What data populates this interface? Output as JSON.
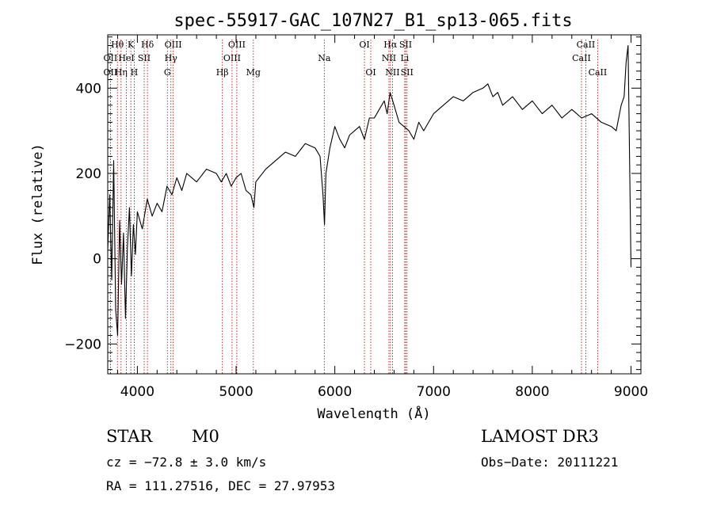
{
  "chart_data": {
    "type": "line",
    "title": "spec-55917-GAC_107N27_B1_sp13-065.fits",
    "xlabel": "Wavelength (Å)",
    "ylabel": "Flux (relative)",
    "xlim": [
      3700,
      9100
    ],
    "ylim": [
      -270,
      525
    ],
    "x_ticks": [
      4000,
      5000,
      6000,
      7000,
      8000,
      9000
    ],
    "y_ticks": [
      -200,
      0,
      200,
      400
    ],
    "series": [
      {
        "name": "spectrum",
        "x": [
          3700,
          3720,
          3740,
          3760,
          3780,
          3800,
          3820,
          3840,
          3860,
          3880,
          3900,
          3920,
          3940,
          3960,
          3980,
          4000,
          4050,
          4100,
          4150,
          4200,
          4250,
          4300,
          4350,
          4400,
          4450,
          4500,
          4600,
          4700,
          4800,
          4850,
          4900,
          4950,
          5000,
          5050,
          5100,
          5150,
          5180,
          5200,
          5300,
          5400,
          5500,
          5600,
          5700,
          5800,
          5850,
          5880,
          5895,
          5910,
          5950,
          6000,
          6050,
          6100,
          6150,
          6200,
          6250,
          6300,
          6350,
          6400,
          6450,
          6500,
          6530,
          6560,
          6600,
          6650,
          6700,
          6750,
          6800,
          6850,
          6900,
          7000,
          7100,
          7200,
          7300,
          7400,
          7500,
          7550,
          7600,
          7650,
          7700,
          7800,
          7900,
          8000,
          8100,
          8200,
          8300,
          8400,
          8500,
          8600,
          8700,
          8800,
          8850,
          8900,
          8930,
          8950,
          8970,
          9000
        ],
        "y": [
          20,
          150,
          -50,
          230,
          -120,
          -180,
          90,
          -60,
          60,
          -140,
          30,
          120,
          -40,
          80,
          10,
          110,
          70,
          140,
          100,
          130,
          110,
          170,
          150,
          190,
          160,
          200,
          180,
          210,
          200,
          180,
          200,
          170,
          190,
          200,
          160,
          150,
          120,
          180,
          210,
          230,
          250,
          240,
          270,
          260,
          240,
          150,
          80,
          200,
          260,
          310,
          280,
          260,
          290,
          300,
          310,
          280,
          330,
          330,
          350,
          370,
          340,
          390,
          360,
          320,
          310,
          300,
          280,
          320,
          300,
          340,
          360,
          380,
          370,
          390,
          400,
          410,
          380,
          390,
          360,
          380,
          350,
          370,
          340,
          360,
          330,
          350,
          330,
          340,
          320,
          310,
          300,
          360,
          380,
          460,
          500,
          -20
        ]
      }
    ],
    "emission_lines": [
      {
        "label": "Hθ",
        "x": 3798,
        "row": 1
      },
      {
        "label": "OII",
        "x": 3727,
        "row": 2
      },
      {
        "label": "OII",
        "x": 3727,
        "row": 3
      },
      {
        "label": "K",
        "x": 3934,
        "row": 1
      },
      {
        "label": "HeI",
        "x": 3889,
        "row": 2
      },
      {
        "label": "Hη",
        "x": 3835,
        "row": 3
      },
      {
        "label": "Hδ",
        "x": 4102,
        "row": 1
      },
      {
        "label": "SII",
        "x": 4069,
        "row": 2
      },
      {
        "label": "H",
        "x": 3968,
        "row": 3
      },
      {
        "label": "OIII",
        "x": 4363,
        "row": 1
      },
      {
        "label": "Hγ",
        "x": 4340,
        "row": 2
      },
      {
        "label": "G",
        "x": 4304,
        "row": 3
      },
      {
        "label": "OIII",
        "x": 5007,
        "row": 1
      },
      {
        "label": "OIII",
        "x": 4959,
        "row": 2
      },
      {
        "label": "Hβ",
        "x": 4861,
        "row": 3
      },
      {
        "label": "Mg",
        "x": 5175,
        "row": 3
      },
      {
        "label": "Na",
        "x": 5893,
        "row": 2
      },
      {
        "label": "OI",
        "x": 6300,
        "row": 1
      },
      {
        "label": "OI",
        "x": 6364,
        "row": 3
      },
      {
        "label": "Hα",
        "x": 6563,
        "row": 1
      },
      {
        "label": "NII",
        "x": 6548,
        "row": 2
      },
      {
        "label": "NII",
        "x": 6584,
        "row": 3
      },
      {
        "label": "SII",
        "x": 6717,
        "row": 1
      },
      {
        "label": "Li",
        "x": 6708,
        "row": 2
      },
      {
        "label": "SII",
        "x": 6731,
        "row": 3
      },
      {
        "label": "CaII",
        "x": 8542,
        "row": 1
      },
      {
        "label": "CaII",
        "x": 8498,
        "row": 2
      },
      {
        "label": "CaII",
        "x": 8662,
        "row": 3
      }
    ]
  },
  "info": {
    "object_class": "STAR",
    "subclass": "M0",
    "survey": "LAMOST DR3",
    "cz": "cz = −72.8 ± 3.0 km/s",
    "obs_date": "Obs−Date: 20111221",
    "coords": "RA = 111.27516, DEC =  27.97953"
  },
  "colors": {
    "line_marker": "#aa0000",
    "spectrum": "#000000"
  }
}
